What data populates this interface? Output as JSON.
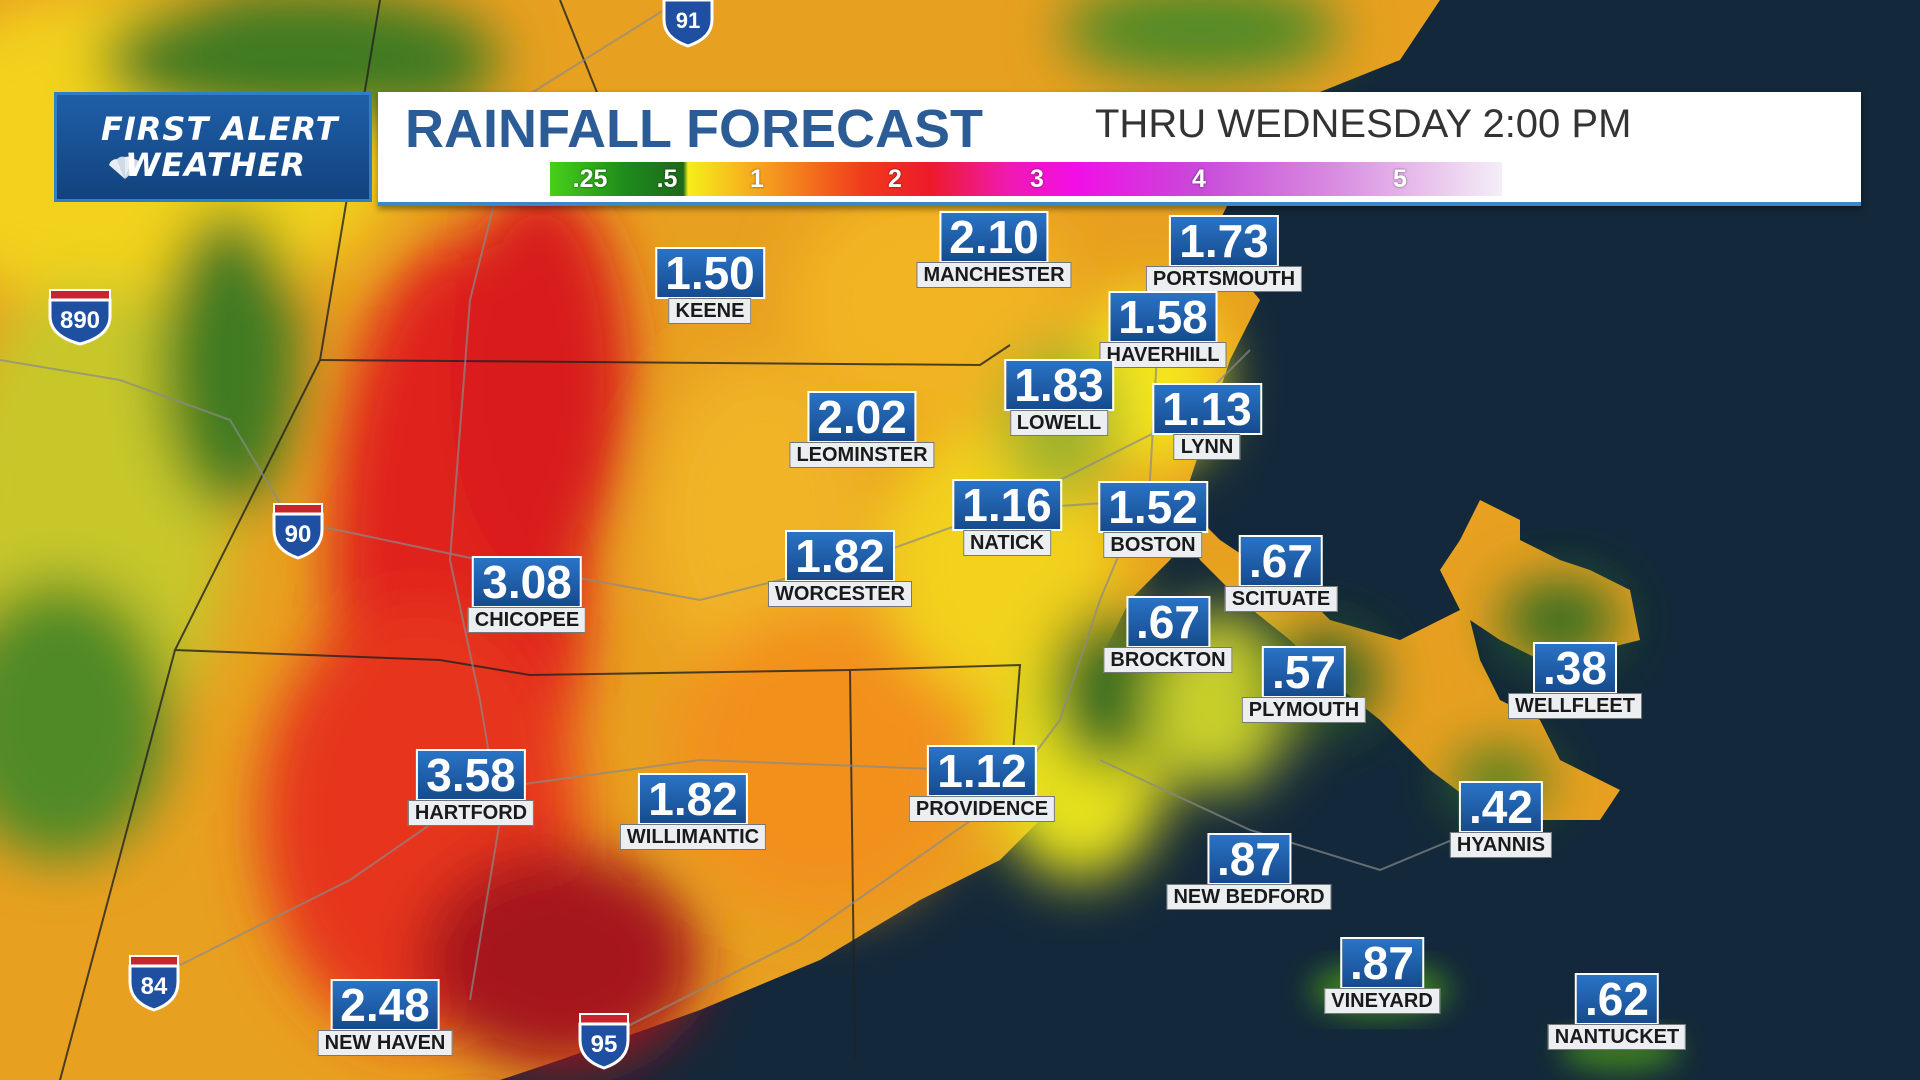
{
  "header": {
    "logo_line1": "FIRST ALERT",
    "logo_line2": "WEATHER",
    "title": "RAINFALL FORECAST",
    "valid_time": "THRU WEDNESDAY  2:00 PM"
  },
  "legend": {
    "stops": [
      ".25",
      ".5",
      "1",
      "2",
      "3",
      "4",
      "5"
    ]
  },
  "cities": [
    {
      "id": "keene",
      "name": "KEENE",
      "value": "1.50"
    },
    {
      "id": "manchester",
      "name": "MANCHESTER",
      "value": "2.10"
    },
    {
      "id": "portsmouth",
      "name": "PORTSMOUTH",
      "value": "1.73"
    },
    {
      "id": "haverhill",
      "name": "HAVERHILL",
      "value": "1.58"
    },
    {
      "id": "lowell",
      "name": "LOWELL",
      "value": "1.83"
    },
    {
      "id": "lynn",
      "name": "LYNN",
      "value": "1.13"
    },
    {
      "id": "leominster",
      "name": "LEOMINSTER",
      "value": "2.02"
    },
    {
      "id": "natick",
      "name": "NATICK",
      "value": "1.16"
    },
    {
      "id": "boston",
      "name": "BOSTON",
      "value": "1.52"
    },
    {
      "id": "worcester",
      "name": "WORCESTER",
      "value": "1.82"
    },
    {
      "id": "chicopee",
      "name": "CHICOPEE",
      "value": "3.08"
    },
    {
      "id": "scituate",
      "name": "SCITUATE",
      "value": ".67"
    },
    {
      "id": "brockton",
      "name": "BROCKTON",
      "value": ".67"
    },
    {
      "id": "plymouth",
      "name": "PLYMOUTH",
      "value": ".57"
    },
    {
      "id": "wellfleet",
      "name": "WELLFLEET",
      "value": ".38"
    },
    {
      "id": "hartford",
      "name": "HARTFORD",
      "value": "3.58"
    },
    {
      "id": "willimantic",
      "name": "WILLIMANTIC",
      "value": "1.82"
    },
    {
      "id": "providence",
      "name": "PROVIDENCE",
      "value": "1.12"
    },
    {
      "id": "hyannis",
      "name": "HYANNIS",
      "value": ".42"
    },
    {
      "id": "new_bedford",
      "name": "NEW BEDFORD",
      "value": ".87"
    },
    {
      "id": "vineyard",
      "name": "VINEYARD",
      "value": ".87"
    },
    {
      "id": "nantucket",
      "name": "NANTUCKET",
      "value": ".62"
    },
    {
      "id": "new_haven",
      "name": "NEW HAVEN",
      "value": "2.48"
    }
  ],
  "highways": [
    "91",
    "890",
    "90",
    "84",
    "95"
  ],
  "colors": {
    "ocean": "#13283a",
    "title_blue": "#2b5c96",
    "value_box": "#1f5fa8",
    "heavy_rain": "#e0231c",
    "moderate_rain": "#f08a1e",
    "light_rain": "#f2e21a",
    "very_light_rain": "#2f7a24"
  }
}
